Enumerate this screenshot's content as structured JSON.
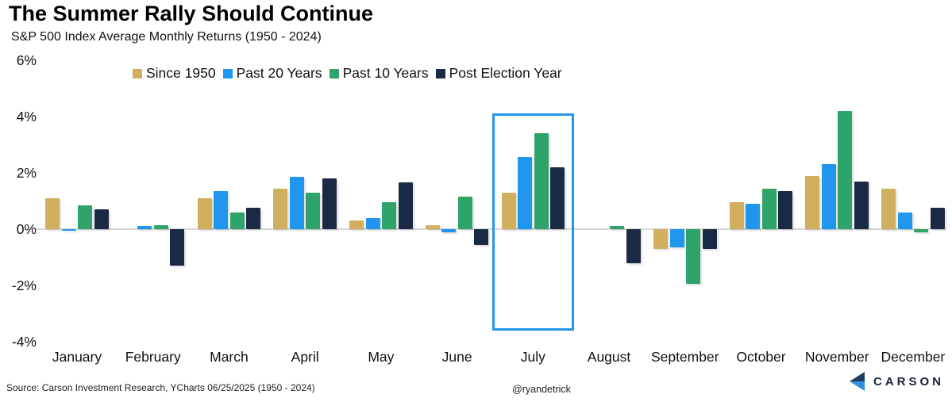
{
  "header": {
    "title": "The Summer Rally Should Continue",
    "subtitle": "S&P 500 Index Average Monthly Returns (1950 - 2024)"
  },
  "footer": {
    "source": "Source: Carson Investment Research, YCharts 06/25/2025 (1950 - 2024)",
    "handle": "@ryandetrick",
    "logo_text": "CARSON"
  },
  "colors": {
    "since_1950": "#d2ae5f",
    "past_20_years": "#2196ef",
    "past_10_years": "#2ea46b",
    "post_election_year": "#1b2a44",
    "highlight_box": "#2196ef",
    "axis_line": "#d8d8d8",
    "logo_navy": "#1d3a5f",
    "logo_blue": "#2f8fe0"
  },
  "chart_data": {
    "type": "bar",
    "title": "The Summer Rally Should Continue",
    "subtitle": "S&P 500 Index Average Monthly Returns (1950 - 2024)",
    "categories": [
      "January",
      "February",
      "March",
      "April",
      "May",
      "June",
      "July",
      "August",
      "September",
      "October",
      "November",
      "December"
    ],
    "series": [
      {
        "name": "Since 1950",
        "color": "#d2ae5f",
        "values": [
          1.1,
          0.0,
          1.1,
          1.45,
          0.3,
          0.15,
          1.3,
          0.0,
          -0.7,
          0.95,
          1.9,
          1.45
        ]
      },
      {
        "name": "Past 20 Years",
        "color": "#2196ef",
        "values": [
          -0.05,
          0.1,
          1.35,
          1.85,
          0.4,
          -0.1,
          2.55,
          0.0,
          -0.65,
          0.9,
          2.3,
          0.6
        ]
      },
      {
        "name": "Past 10 Years",
        "color": "#2ea46b",
        "values": [
          0.85,
          0.15,
          0.6,
          1.3,
          0.95,
          1.15,
          3.4,
          0.1,
          -1.95,
          1.45,
          4.2,
          -0.1
        ]
      },
      {
        "name": "Post Election Year",
        "color": "#1b2a44",
        "values": [
          0.7,
          -1.3,
          0.75,
          1.8,
          1.65,
          -0.55,
          2.2,
          -1.2,
          -0.7,
          1.35,
          1.7,
          0.75
        ]
      }
    ],
    "ylim": [
      -4,
      6
    ],
    "yticks": [
      6,
      4,
      2,
      0,
      -2,
      -4
    ],
    "ytick_suffix": "%",
    "xlabel": "",
    "ylabel": "",
    "grid": false,
    "legend_position": "top",
    "highlight": {
      "category": "July",
      "top_pct": 4.1,
      "bottom_pct": -3.6,
      "width": 103
    }
  }
}
